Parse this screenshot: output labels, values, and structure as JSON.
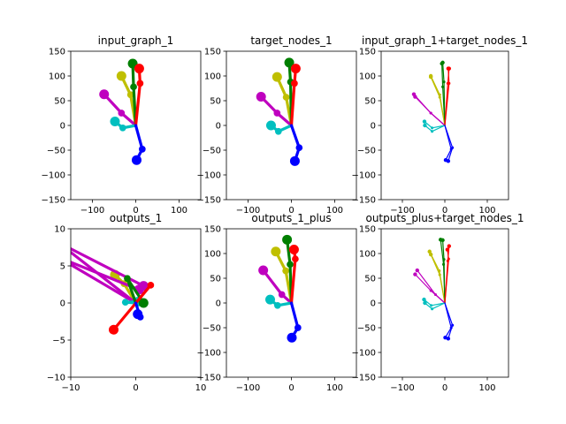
{
  "chart_data": [
    {
      "type": "scatter",
      "title": "input_graph_1",
      "xlim": [
        -150,
        150
      ],
      "ylim": [
        -150,
        150
      ],
      "xticks": [
        -100,
        0,
        100
      ],
      "yticks": [
        -150,
        -100,
        -50,
        0,
        50,
        100,
        150
      ],
      "style": "thick",
      "series": [
        {
          "color": "#bfbf00",
          "points": [
            [
              0,
              0
            ],
            [
              -12,
              62
            ],
            [
              -33,
              100
            ]
          ]
        },
        {
          "color": "#bf00bf",
          "points": [
            [
              0,
              0
            ],
            [
              -33,
              25
            ],
            [
              -73,
              63
            ]
          ]
        },
        {
          "color": "#00bfbf",
          "points": [
            [
              0,
              0
            ],
            [
              -30,
              -5
            ],
            [
              -48,
              8
            ]
          ]
        },
        {
          "color": "#007f00",
          "points": [
            [
              0,
              0
            ],
            [
              -5,
              78
            ],
            [
              -7,
              125
            ]
          ]
        },
        {
          "color": "#ff0000",
          "points": [
            [
              0,
              0
            ],
            [
              10,
              85
            ],
            [
              8,
              115
            ]
          ]
        },
        {
          "color": "#0000ff",
          "points": [
            [
              0,
              0
            ],
            [
              15,
              -48
            ],
            [
              2,
              -70
            ]
          ]
        }
      ]
    },
    {
      "type": "scatter",
      "title": "target_nodes_1",
      "xlim": [
        -150,
        150
      ],
      "ylim": [
        -150,
        150
      ],
      "xticks": [
        -100,
        0,
        100
      ],
      "yticks": [
        -150,
        -100,
        -50,
        0,
        50,
        100,
        150
      ],
      "style": "thick",
      "series": [
        {
          "color": "#bfbf00",
          "points": [
            [
              0,
              0
            ],
            [
              -12,
              57
            ],
            [
              -33,
              98
            ]
          ]
        },
        {
          "color": "#bf00bf",
          "points": [
            [
              0,
              0
            ],
            [
              -33,
              25
            ],
            [
              -70,
              58
            ]
          ]
        },
        {
          "color": "#00bfbf",
          "points": [
            [
              0,
              0
            ],
            [
              -30,
              -12
            ],
            [
              -47,
              0
            ]
          ]
        },
        {
          "color": "#007f00",
          "points": [
            [
              0,
              0
            ],
            [
              -2,
              88
            ],
            [
              -5,
              127
            ]
          ]
        },
        {
          "color": "#ff0000",
          "points": [
            [
              0,
              0
            ],
            [
              7,
              85
            ],
            [
              10,
              115
            ]
          ]
        },
        {
          "color": "#0000ff",
          "points": [
            [
              0,
              0
            ],
            [
              18,
              -45
            ],
            [
              8,
              -72
            ]
          ]
        }
      ]
    },
    {
      "type": "scatter",
      "title": "input_graph_1+target_nodes_1",
      "xlim": [
        -150,
        150
      ],
      "ylim": [
        -150,
        150
      ],
      "xticks": [
        -100,
        0,
        100
      ],
      "yticks": [
        -150,
        -100,
        -50,
        0,
        50,
        100,
        150
      ],
      "style": "thin",
      "series": [
        {
          "color": "#bfbf00",
          "points": [
            [
              0,
              0
            ],
            [
              -12,
              62
            ],
            [
              -33,
              100
            ]
          ]
        },
        {
          "color": "#bf00bf",
          "points": [
            [
              0,
              0
            ],
            [
              -33,
              25
            ],
            [
              -73,
              63
            ]
          ]
        },
        {
          "color": "#00bfbf",
          "points": [
            [
              0,
              0
            ],
            [
              -30,
              -5
            ],
            [
              -48,
              8
            ]
          ]
        },
        {
          "color": "#007f00",
          "points": [
            [
              0,
              0
            ],
            [
              -5,
              78
            ],
            [
              -7,
              125
            ]
          ]
        },
        {
          "color": "#ff0000",
          "points": [
            [
              0,
              0
            ],
            [
              10,
              85
            ],
            [
              8,
              115
            ]
          ]
        },
        {
          "color": "#0000ff",
          "points": [
            [
              0,
              0
            ],
            [
              15,
              -48
            ],
            [
              2,
              -70
            ]
          ]
        },
        {
          "color": "#bfbf00",
          "points": [
            [
              0,
              0
            ],
            [
              -12,
              57
            ],
            [
              -33,
              98
            ]
          ]
        },
        {
          "color": "#bf00bf",
          "points": [
            [
              0,
              0
            ],
            [
              -33,
              25
            ],
            [
              -70,
              58
            ]
          ]
        },
        {
          "color": "#00bfbf",
          "points": [
            [
              0,
              0
            ],
            [
              -30,
              -12
            ],
            [
              -47,
              0
            ]
          ]
        },
        {
          "color": "#007f00",
          "points": [
            [
              0,
              0
            ],
            [
              -2,
              88
            ],
            [
              -5,
              127
            ]
          ]
        },
        {
          "color": "#ff0000",
          "points": [
            [
              0,
              0
            ],
            [
              7,
              85
            ],
            [
              10,
              115
            ]
          ]
        },
        {
          "color": "#0000ff",
          "points": [
            [
              0,
              0
            ],
            [
              18,
              -45
            ],
            [
              8,
              -72
            ]
          ]
        }
      ]
    },
    {
      "type": "scatter",
      "title": "outputs_1",
      "xlim": [
        -10,
        10
      ],
      "ylim": [
        -10,
        10
      ],
      "xticks": [
        -10,
        0,
        10
      ],
      "yticks": [
        -10,
        -5,
        0,
        5,
        10
      ],
      "style": "thick",
      "series": [
        {
          "color": "#bfbf00",
          "points": [
            [
              0,
              0
            ],
            [
              -1.8,
              2.6
            ],
            [
              -3.2,
              3.8
            ]
          ]
        },
        {
          "color": "#bf00bf",
          "points": [
            [
              0,
              0
            ],
            [
              -12,
              8.2
            ],
            [
              1.2,
              2.3
            ]
          ]
        },
        {
          "color": "#bf00bf",
          "points": [
            [
              0,
              0
            ],
            [
              -12,
              6.2
            ],
            [
              0.5,
              1.8
            ]
          ]
        },
        {
          "color": "#00bfbf",
          "points": [
            [
              0,
              0
            ],
            [
              -1.6,
              0.1
            ],
            [
              0.4,
              0.2
            ]
          ]
        },
        {
          "color": "#007f00",
          "points": [
            [
              0,
              0
            ],
            [
              -1.3,
              3.3
            ],
            [
              1.2,
              0
            ]
          ]
        },
        {
          "color": "#ff0000",
          "points": [
            [
              0,
              0
            ],
            [
              2.3,
              2.4
            ],
            [
              -3.4,
              -3.6
            ]
          ]
        },
        {
          "color": "#0000ff",
          "points": [
            [
              0,
              0
            ],
            [
              0.7,
              -1.9
            ],
            [
              0.3,
              -1.5
            ]
          ]
        }
      ]
    },
    {
      "type": "scatter",
      "title": "outputs_1_plus",
      "xlim": [
        -150,
        150
      ],
      "ylim": [
        -150,
        150
      ],
      "xticks": [
        -100,
        0,
        100
      ],
      "yticks": [
        -150,
        -100,
        -50,
        0,
        50,
        100,
        150
      ],
      "style": "thick",
      "series": [
        {
          "color": "#bfbf00",
          "points": [
            [
              0,
              0
            ],
            [
              -13,
              65
            ],
            [
              -36,
              104
            ]
          ]
        },
        {
          "color": "#bf00bf",
          "points": [
            [
              0,
              0
            ],
            [
              -22,
              17
            ],
            [
              -65,
              66
            ]
          ]
        },
        {
          "color": "#00bfbf",
          "points": [
            [
              0,
              0
            ],
            [
              -32,
              -5
            ],
            [
              -49,
              7
            ]
          ]
        },
        {
          "color": "#007f00",
          "points": [
            [
              0,
              0
            ],
            [
              -3,
              78
            ],
            [
              -10,
              128
            ]
          ]
        },
        {
          "color": "#ff0000",
          "points": [
            [
              0,
              0
            ],
            [
              9,
              89
            ],
            [
              6,
              108
            ]
          ]
        },
        {
          "color": "#0000ff",
          "points": [
            [
              0,
              0
            ],
            [
              15,
              -50
            ],
            [
              1,
              -70
            ]
          ]
        }
      ]
    },
    {
      "type": "scatter",
      "title": "outputs_plus+target_nodes_1",
      "xlim": [
        -150,
        150
      ],
      "ylim": [
        -150,
        150
      ],
      "xticks": [
        -100,
        0,
        100
      ],
      "yticks": [
        -150,
        -100,
        -50,
        0,
        50,
        100,
        150
      ],
      "style": "thin",
      "series": [
        {
          "color": "#bfbf00",
          "points": [
            [
              0,
              0
            ],
            [
              -13,
              65
            ],
            [
              -36,
              104
            ]
          ]
        },
        {
          "color": "#bf00bf",
          "points": [
            [
              0,
              0
            ],
            [
              -22,
              17
            ],
            [
              -65,
              66
            ]
          ]
        },
        {
          "color": "#00bfbf",
          "points": [
            [
              0,
              0
            ],
            [
              -32,
              -5
            ],
            [
              -49,
              7
            ]
          ]
        },
        {
          "color": "#007f00",
          "points": [
            [
              0,
              0
            ],
            [
              -3,
              78
            ],
            [
              -10,
              128
            ]
          ]
        },
        {
          "color": "#ff0000",
          "points": [
            [
              0,
              0
            ],
            [
              9,
              89
            ],
            [
              6,
              108
            ]
          ]
        },
        {
          "color": "#0000ff",
          "points": [
            [
              0,
              0
            ],
            [
              15,
              -50
            ],
            [
              1,
              -70
            ]
          ]
        },
        {
          "color": "#bfbf00",
          "points": [
            [
              0,
              0
            ],
            [
              -12,
              57
            ],
            [
              -33,
              98
            ]
          ]
        },
        {
          "color": "#bf00bf",
          "points": [
            [
              0,
              0
            ],
            [
              -33,
              25
            ],
            [
              -70,
              58
            ]
          ]
        },
        {
          "color": "#00bfbf",
          "points": [
            [
              0,
              0
            ],
            [
              -30,
              -12
            ],
            [
              -47,
              0
            ]
          ]
        },
        {
          "color": "#007f00",
          "points": [
            [
              0,
              0
            ],
            [
              -2,
              88
            ],
            [
              -5,
              127
            ]
          ]
        },
        {
          "color": "#ff0000",
          "points": [
            [
              0,
              0
            ],
            [
              7,
              85
            ],
            [
              10,
              115
            ]
          ]
        },
        {
          "color": "#0000ff",
          "points": [
            [
              0,
              0
            ],
            [
              18,
              -45
            ],
            [
              8,
              -72
            ]
          ]
        }
      ]
    }
  ]
}
